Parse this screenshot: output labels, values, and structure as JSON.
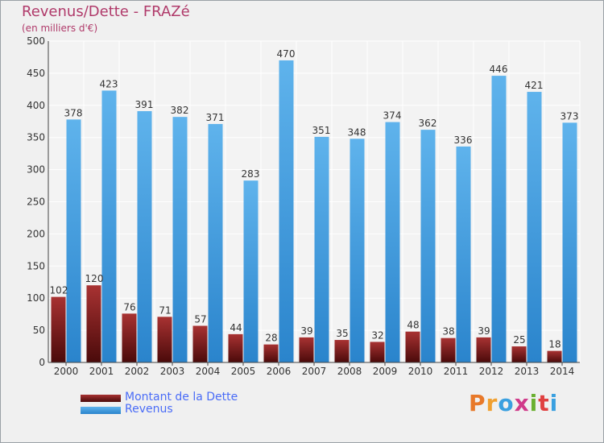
{
  "title": "Revenus/Dette - FRAZé",
  "subtitle": "(en milliers d'€)",
  "brand": {
    "text": "Proxiti",
    "colors": [
      "#e8792a",
      "#f0a030",
      "#3aa0e0",
      "#d03a8a",
      "#6ab030",
      "#e04040",
      "#3aa0e0"
    ]
  },
  "colors": {
    "dette": "#7a1a1a",
    "revenus": "#3f9de0",
    "title": "#b03a6a",
    "legend_text": "#4a6cf7"
  },
  "chart_data": {
    "type": "bar",
    "categories": [
      "2000",
      "2001",
      "2002",
      "2003",
      "2004",
      "2005",
      "2006",
      "2007",
      "2008",
      "2009",
      "2010",
      "2011",
      "2012",
      "2013",
      "2014"
    ],
    "series": [
      {
        "name": "Montant de la Dette",
        "values": [
          102,
          120,
          76,
          71,
          57,
          44,
          28,
          39,
          35,
          32,
          48,
          38,
          39,
          25,
          18
        ]
      },
      {
        "name": "Revenus",
        "values": [
          378,
          423,
          391,
          382,
          371,
          283,
          470,
          351,
          348,
          374,
          362,
          336,
          446,
          421,
          373
        ]
      }
    ],
    "ylim": [
      0,
      500
    ],
    "yticks": [
      0,
      50,
      100,
      150,
      200,
      250,
      300,
      350,
      400,
      450,
      500
    ],
    "grid": true,
    "legend_position": "bottom-left"
  }
}
